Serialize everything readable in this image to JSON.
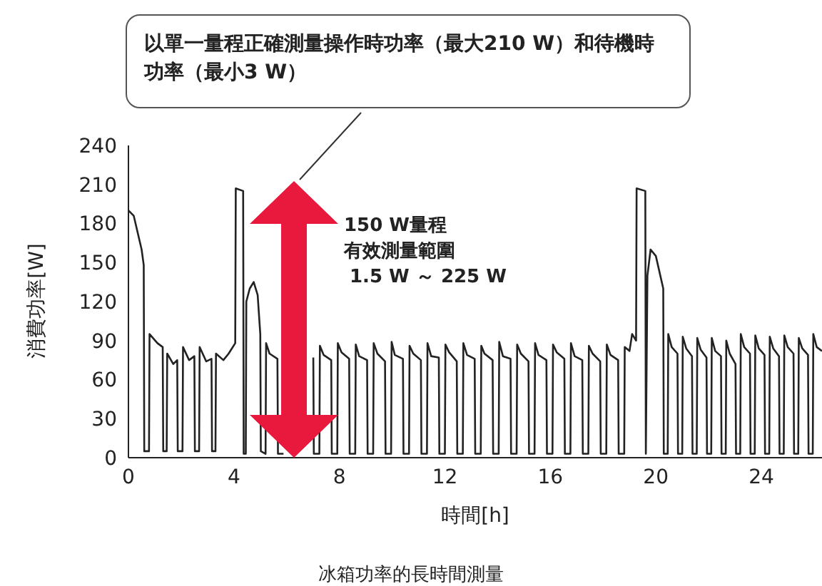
{
  "chart_data": {
    "type": "line",
    "xlabel": "時間[h]",
    "ylabel": "消費功率[W]",
    "xlim": [
      0,
      26.3
    ],
    "xticks": [
      0,
      4,
      8,
      12,
      16,
      20,
      24
    ],
    "ylim": [
      0,
      240
    ],
    "yticks": [
      0,
      30,
      60,
      90,
      120,
      150,
      180,
      210,
      240
    ],
    "marker": "none",
    "annotations": [
      "以單一量程正確測量操作時功率（最大210 W）和待機時功率（最小3 W）",
      "150 W量程",
      "有效測量範圍",
      "1.5 W ～ 225 W",
      "冰箱功率的長時間測量"
    ],
    "series": [
      {
        "color": "#222222",
        "x": [
          0,
          0.2,
          0.5,
          0.58,
          0.6,
          0.78,
          0.8,
          1.1,
          1.3,
          1.32,
          1.45,
          1.47,
          1.7,
          1.85,
          1.87,
          2.05,
          2.07,
          2.3,
          2.5,
          2.52,
          2.68,
          2.7,
          2.95,
          3.15,
          3.17,
          3.3,
          3.32,
          3.6,
          3.8,
          4.05,
          4.07,
          4.35,
          4.37,
          4.45,
          4.47,
          4.6,
          4.75,
          4.9,
          5.0,
          5.02,
          5.2,
          5.22,
          5.35,
          5.65,
          5.67,
          5.88,
          5.9,
          6.05,
          6.33,
          6.35,
          6.56,
          6.58,
          6.7,
          7.01,
          7.03,
          7.24,
          7.26,
          7.4,
          7.69,
          7.71,
          7.92,
          7.94,
          8.08,
          8.37,
          8.39,
          8.6,
          8.62,
          8.75,
          9.05,
          9.07,
          9.28,
          9.3,
          9.44,
          9.73,
          9.75,
          9.96,
          9.98,
          10.1,
          10.41,
          10.43,
          10.64,
          10.66,
          10.8,
          11.09,
          11.11,
          11.32,
          11.34,
          11.48,
          11.77,
          11.79,
          12.0,
          12.02,
          12.16,
          12.45,
          12.47,
          12.68,
          12.7,
          12.84,
          13.13,
          13.15,
          13.36,
          13.38,
          13.5,
          13.81,
          13.83,
          14.04,
          14.06,
          14.2,
          14.49,
          14.51,
          14.72,
          14.74,
          14.88,
          15.17,
          15.19,
          15.4,
          15.42,
          15.55,
          15.85,
          15.87,
          16.08,
          16.1,
          16.24,
          16.53,
          16.55,
          16.76,
          16.78,
          16.92,
          17.21,
          17.23,
          17.44,
          17.46,
          17.6,
          17.89,
          17.91,
          18.12,
          18.14,
          18.28,
          18.57,
          18.59,
          18.8,
          18.82,
          19.0,
          19.1,
          19.25,
          19.27,
          19.6,
          19.62,
          19.68,
          19.8,
          20.0,
          20.28,
          20.3,
          20.45,
          20.47,
          20.6,
          20.82,
          20.84,
          21.0,
          21.02,
          21.15,
          21.37,
          21.39,
          21.55,
          21.57,
          21.7,
          21.92,
          21.94,
          22.1,
          22.12,
          22.25,
          22.47,
          22.49,
          22.65,
          22.67,
          22.8,
          23.02,
          23.04,
          23.2,
          23.22,
          23.35,
          23.57,
          23.59,
          23.75,
          23.77,
          23.9,
          24.12,
          24.14,
          24.3,
          24.32,
          24.45,
          24.67,
          24.69,
          24.85,
          24.87,
          25.0,
          25.22,
          25.24,
          25.4,
          25.42,
          25.55,
          25.77,
          25.79,
          25.95,
          25.97,
          26.1,
          26.3
        ],
        "values": [
          190,
          186,
          160,
          148,
          5,
          5,
          95,
          88,
          85,
          5,
          5,
          80,
          72,
          75,
          5,
          5,
          85,
          75,
          78,
          5,
          5,
          85,
          74,
          76,
          5,
          5,
          80,
          75,
          80,
          88,
          207,
          205,
          3,
          3,
          120,
          130,
          135,
          125,
          95,
          5,
          3,
          88,
          80,
          76,
          3,
          3,
          null,
          null,
          null,
          null,
          null,
          null,
          null,
          77,
          3,
          3,
          86,
          79,
          75,
          3,
          3,
          88,
          81,
          76,
          3,
          3,
          87,
          78,
          75,
          3,
          3,
          88,
          80,
          74,
          3,
          3,
          89,
          79,
          76,
          3,
          3,
          86,
          80,
          75,
          3,
          3,
          88,
          78,
          77,
          3,
          3,
          87,
          81,
          74,
          3,
          3,
          88,
          79,
          76,
          3,
          3,
          86,
          80,
          75,
          3,
          3,
          89,
          78,
          76,
          3,
          3,
          87,
          80,
          74,
          3,
          3,
          88,
          79,
          75,
          3,
          3,
          87,
          81,
          76,
          3,
          3,
          88,
          78,
          75,
          3,
          3,
          86,
          80,
          74,
          3,
          3,
          87,
          79,
          75,
          3,
          3,
          85,
          82,
          95,
          90,
          207,
          205,
          3,
          140,
          160,
          155,
          130,
          3,
          3,
          95,
          85,
          80,
          3,
          3,
          93,
          84,
          78,
          3,
          3,
          92,
          83,
          77,
          3,
          3,
          92,
          82,
          78,
          3,
          3,
          90,
          80,
          72,
          3,
          3,
          95,
          85,
          80,
          3,
          3,
          94,
          84,
          79,
          3,
          3,
          93,
          84,
          78,
          3,
          3,
          94,
          85,
          80,
          3,
          3,
          92,
          84,
          79,
          3,
          3,
          95,
          85,
          82
        ]
      }
    ]
  }
}
